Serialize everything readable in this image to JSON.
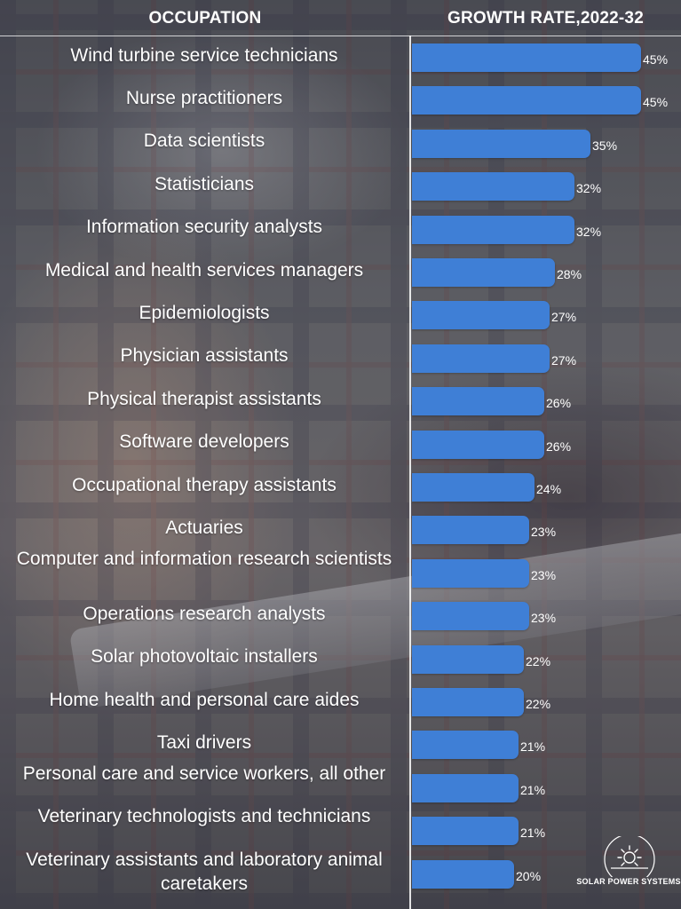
{
  "header": {
    "occupation_label": "OCCUPATION",
    "growth_label": "GROWTH RATE,2022-32"
  },
  "logo": {
    "text": "SOLAR POWER SYSTEMS",
    "icon": "sun-icon"
  },
  "chart_data": {
    "type": "bar",
    "orientation": "horizontal",
    "title": "",
    "xlabel": "GROWTH RATE,2022-32",
    "ylabel": "OCCUPATION",
    "xlim": [
      0,
      45
    ],
    "value_suffix": "%",
    "bar_color": "#3f7fd6",
    "categories": [
      "Wind turbine service technicians",
      "Nurse practitioners",
      "Data scientists",
      "Statisticians",
      "Information security analysts",
      "Medical and health services managers",
      "Epidemiologists",
      "Physician assistants",
      "Physical therapist assistants",
      "Software developers",
      "Occupational therapy assistants",
      "Actuaries",
      "Computer and information research scientists",
      "Operations research analysts",
      "Solar photovoltaic installers",
      "Home health and personal care aides",
      "Taxi drivers",
      "Personal care and service workers, all other",
      "Veterinary technologists and technicians",
      "Veterinary assistants and laboratory animal caretakers"
    ],
    "values": [
      45,
      45,
      35,
      32,
      32,
      28,
      27,
      27,
      26,
      26,
      24,
      23,
      23,
      23,
      22,
      22,
      21,
      21,
      21,
      20
    ]
  }
}
